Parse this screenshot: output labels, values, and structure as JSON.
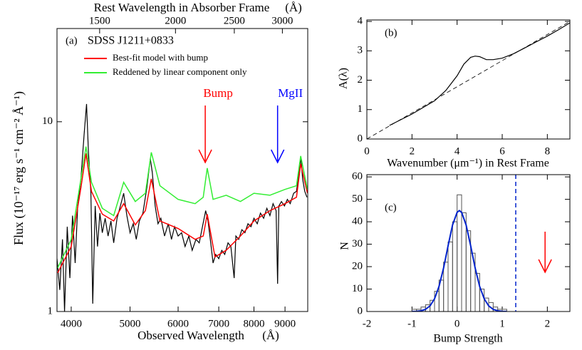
{
  "chart_data": [
    {
      "type": "line",
      "panel_label": "(a)",
      "title": "SDSS J1211+0833",
      "x_label": "Observed Wavelength",
      "x_unit": "(Å)",
      "top_x_label": "Rest Wavelength in Absorber Frame",
      "top_x_unit": "(Å)",
      "y_label": "Flux (10⁻¹⁷ erg s⁻¹ cm⁻² Å⁻¹)",
      "xscale": "log",
      "yscale": "log",
      "xlim": [
        3790,
        9810
      ],
      "xticks": [
        4000,
        5000,
        6000,
        7000,
        8000,
        9000
      ],
      "x2lim": [
        1276,
        3303
      ],
      "x2ticks": [
        1500,
        2000,
        2500,
        3000
      ],
      "ylim": [
        1,
        31
      ],
      "yticks": [
        1,
        10
      ],
      "series": [
        {
          "color": "#000000",
          "x": [
            3790,
            3830,
            3870,
            3900,
            3940,
            3980,
            4020,
            4060,
            4100,
            4150,
            4200,
            4240,
            4270,
            4310,
            4340,
            4380,
            4420,
            4460,
            4500,
            4550,
            4600,
            4650,
            4700,
            4760,
            4820,
            4880,
            4940,
            5000,
            5060,
            5120,
            5180,
            5250,
            5330,
            5400,
            5440,
            5500,
            5560,
            5620,
            5700,
            5780,
            5850,
            5920,
            6000,
            6080,
            6160,
            6250,
            6330,
            6420,
            6500,
            6580,
            6660,
            6720,
            6790,
            6850,
            6920,
            7000,
            7080,
            7160,
            7250,
            7330,
            7420,
            7470,
            7550,
            7640,
            7730,
            7820,
            7910,
            8000,
            8100,
            8200,
            8300,
            8400,
            8500,
            8600,
            8700,
            8750,
            8790,
            8880,
            8980,
            9080,
            9180,
            9300,
            9400,
            9500,
            9560,
            9620,
            9700,
            9780
          ],
          "values": [
            1.9,
            1.3,
            2.4,
            1.0,
            2.8,
            1.5,
            3.2,
            1.8,
            3.6,
            5.0,
            8.5,
            12.4,
            7.0,
            4.2,
            1.1,
            3.6,
            2.2,
            3.3,
            2.6,
            3.1,
            2.5,
            3.0,
            2.3,
            3.1,
            3.6,
            4.2,
            3.2,
            2.6,
            2.9,
            2.4,
            3.0,
            3.3,
            4.5,
            6.4,
            5.4,
            3.6,
            2.9,
            3.1,
            2.5,
            2.9,
            2.4,
            2.8,
            2.5,
            2.6,
            2.2,
            2.5,
            2.1,
            2.4,
            2.3,
            2.8,
            3.4,
            3.0,
            2.3,
            1.8,
            2.0,
            1.9,
            2.1,
            2.0,
            2.3,
            2.2,
            1.5,
            2.5,
            2.4,
            2.7,
            2.6,
            2.9,
            2.8,
            3.1,
            2.9,
            3.3,
            3.1,
            3.5,
            3.2,
            3.7,
            3.4,
            1.4,
            3.6,
            3.8,
            3.6,
            3.9,
            3.7,
            4.2,
            4.3,
            5.5,
            6.5,
            5.0,
            4.3,
            4.0
          ]
        },
        {
          "name": "Best-fit model with bump",
          "color": "#ff0000",
          "x": [
            3800,
            4000,
            4150,
            4230,
            4320,
            4500,
            4700,
            4880,
            5100,
            5300,
            5420,
            5600,
            6000,
            6400,
            6600,
            6700,
            6900,
            7200,
            7600,
            8000,
            8500,
            9000,
            9400,
            9550,
            9800
          ],
          "values": [
            1.6,
            2.2,
            4.5,
            6.8,
            4.3,
            3.26,
            3.0,
            3.7,
            2.86,
            3.4,
            5.0,
            3.0,
            2.74,
            2.4,
            2.5,
            3.26,
            1.94,
            2.1,
            2.5,
            3.0,
            3.4,
            3.7,
            4.0,
            6.0,
            4.2
          ]
        },
        {
          "name": "Reddened by linear component only",
          "color": "#33ee33",
          "x": [
            3800,
            4000,
            4150,
            4230,
            4320,
            4500,
            4700,
            4880,
            5100,
            5300,
            5420,
            5600,
            6000,
            6400,
            6600,
            6700,
            6850,
            7200,
            7600,
            8000,
            8500,
            9000,
            9400,
            9550,
            9800
          ],
          "values": [
            1.7,
            2.4,
            5.0,
            7.4,
            4.8,
            3.5,
            3.2,
            4.8,
            3.8,
            4.2,
            6.9,
            4.6,
            3.9,
            3.7,
            4.0,
            5.7,
            3.9,
            4.1,
            3.8,
            4.2,
            4.1,
            4.4,
            4.6,
            6.6,
            4.4
          ]
        }
      ],
      "annotations": [
        {
          "text": "Bump",
          "x": 6650,
          "color": "#ff0000"
        },
        {
          "text": "MgII",
          "x": 8750,
          "color": "#0000ff"
        }
      ]
    },
    {
      "type": "line",
      "panel_label": "(b)",
      "x_label": "Wavenumber (μm⁻¹) in Rest Frame",
      "y_label": "A(λ)",
      "xlim": [
        0,
        9
      ],
      "xticks": [
        0,
        2,
        4,
        6,
        8
      ],
      "ylim": [
        0,
        4.05
      ],
      "yticks": [
        0,
        1,
        2,
        3,
        4
      ],
      "series": [
        {
          "color": "#000000",
          "style": "solid",
          "x": [
            1,
            2,
            3,
            3.5,
            4,
            4.3,
            4.6,
            4.8,
            5.0,
            5.3,
            5.6,
            6,
            6.5,
            7,
            7.5,
            8,
            8.5,
            9
          ],
          "values": [
            0.46,
            0.85,
            1.3,
            1.65,
            2.15,
            2.55,
            2.78,
            2.82,
            2.8,
            2.7,
            2.7,
            2.75,
            2.9,
            3.1,
            3.3,
            3.5,
            3.72,
            3.95
          ]
        },
        {
          "color": "#000000",
          "style": "dashed",
          "x": [
            0,
            9
          ],
          "values": [
            0,
            4.0
          ]
        }
      ]
    },
    {
      "type": "histogram",
      "panel_label": "(c)",
      "x_label": "Bump Strength",
      "y_label": "N",
      "xlim": [
        -2,
        2.5
      ],
      "xticks": [
        -2,
        -1,
        0,
        1,
        2
      ],
      "ylim": [
        0,
        61
      ],
      "yticks": [
        0,
        10,
        20,
        30,
        40,
        50,
        60
      ],
      "bins": [
        -1.0,
        -0.9,
        -0.8,
        -0.7,
        -0.6,
        -0.5,
        -0.4,
        -0.3,
        -0.2,
        -0.1,
        0.0,
        0.1,
        0.2,
        0.3,
        0.4,
        0.5,
        0.6,
        0.7,
        0.8,
        0.9,
        1.0,
        1.1,
        1.2
      ],
      "counts": [
        1,
        1,
        2,
        3,
        5,
        9,
        14,
        22,
        31,
        40,
        52,
        44,
        36,
        26,
        17,
        10,
        6,
        4,
        2,
        1,
        1,
        0
      ],
      "color": "#555555",
      "fit": {
        "color": "#0022cc",
        "x": [
          -1.0,
          -0.9,
          -0.8,
          -0.7,
          -0.6,
          -0.5,
          -0.4,
          -0.3,
          -0.2,
          -0.1,
          0.0,
          0.05,
          0.1,
          0.2,
          0.3,
          0.4,
          0.5,
          0.6,
          0.7,
          0.8,
          0.9,
          1.0,
          1.1
        ],
        "values": [
          0.02,
          0.09,
          0.32,
          0.95,
          2.5,
          5.7,
          11.2,
          19.4,
          29.3,
          38.6,
          44.2,
          45,
          44.2,
          38.6,
          29.3,
          19.4,
          11.2,
          5.7,
          2.5,
          0.95,
          0.32,
          0.09,
          0.02
        ]
      },
      "vline": {
        "x": 1.3,
        "color": "#0022cc"
      },
      "arrow": {
        "x": 1.95,
        "color": "#ff0000"
      }
    }
  ]
}
